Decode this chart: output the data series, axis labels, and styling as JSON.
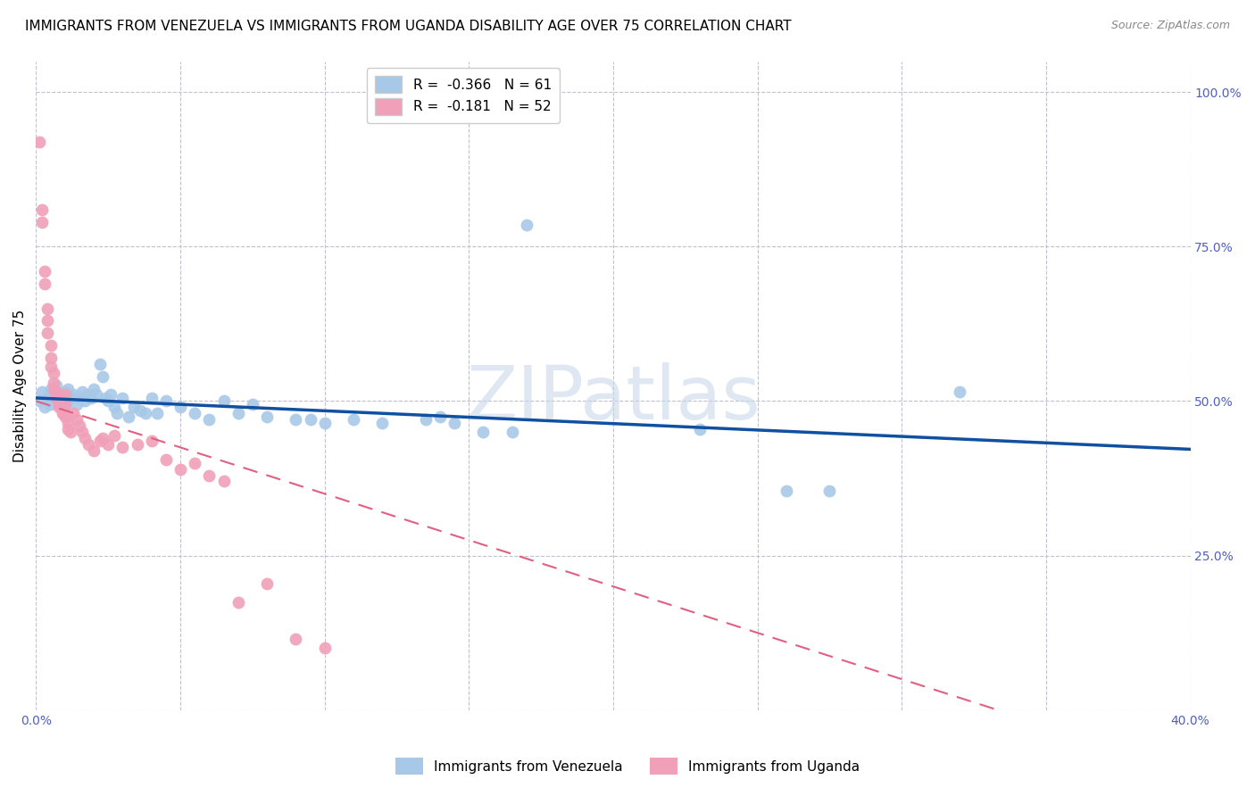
{
  "title": "IMMIGRANTS FROM VENEZUELA VS IMMIGRANTS FROM UGANDA DISABILITY AGE OVER 75 CORRELATION CHART",
  "source": "Source: ZipAtlas.com",
  "ylabel_label": "Disability Age Over 75",
  "xlim": [
    0.0,
    0.4
  ],
  "ylim": [
    0.0,
    1.05
  ],
  "legend_r1": "-0.366",
  "legend_n1": "61",
  "legend_r2": "-0.181",
  "legend_n2": "52",
  "color_venezuela": "#a8c8e8",
  "color_uganda": "#f0a0b8",
  "color_line_venezuela": "#1050a0",
  "color_line_uganda": "#e06080",
  "color_watermark": "#c8d8ea",
  "color_grid": "#c0c0d0",
  "venezuela_points": [
    [
      0.001,
      0.5
    ],
    [
      0.002,
      0.515
    ],
    [
      0.003,
      0.49
    ],
    [
      0.004,
      0.505
    ],
    [
      0.005,
      0.52
    ],
    [
      0.005,
      0.495
    ],
    [
      0.006,
      0.51
    ],
    [
      0.007,
      0.525
    ],
    [
      0.007,
      0.5
    ],
    [
      0.008,
      0.51
    ],
    [
      0.009,
      0.505
    ],
    [
      0.01,
      0.515
    ],
    [
      0.01,
      0.49
    ],
    [
      0.011,
      0.52
    ],
    [
      0.012,
      0.505
    ],
    [
      0.013,
      0.51
    ],
    [
      0.014,
      0.495
    ],
    [
      0.015,
      0.505
    ],
    [
      0.016,
      0.515
    ],
    [
      0.017,
      0.5
    ],
    [
      0.018,
      0.51
    ],
    [
      0.019,
      0.505
    ],
    [
      0.02,
      0.52
    ],
    [
      0.021,
      0.51
    ],
    [
      0.022,
      0.56
    ],
    [
      0.023,
      0.54
    ],
    [
      0.024,
      0.505
    ],
    [
      0.025,
      0.5
    ],
    [
      0.026,
      0.51
    ],
    [
      0.027,
      0.49
    ],
    [
      0.028,
      0.48
    ],
    [
      0.03,
      0.505
    ],
    [
      0.032,
      0.475
    ],
    [
      0.034,
      0.49
    ],
    [
      0.036,
      0.485
    ],
    [
      0.038,
      0.48
    ],
    [
      0.04,
      0.505
    ],
    [
      0.042,
      0.48
    ],
    [
      0.045,
      0.5
    ],
    [
      0.05,
      0.49
    ],
    [
      0.055,
      0.48
    ],
    [
      0.06,
      0.47
    ],
    [
      0.065,
      0.5
    ],
    [
      0.07,
      0.48
    ],
    [
      0.075,
      0.495
    ],
    [
      0.08,
      0.475
    ],
    [
      0.09,
      0.47
    ],
    [
      0.095,
      0.47
    ],
    [
      0.1,
      0.465
    ],
    [
      0.11,
      0.47
    ],
    [
      0.12,
      0.465
    ],
    [
      0.135,
      0.47
    ],
    [
      0.14,
      0.475
    ],
    [
      0.145,
      0.465
    ],
    [
      0.155,
      0.45
    ],
    [
      0.165,
      0.45
    ],
    [
      0.17,
      0.785
    ],
    [
      0.23,
      0.455
    ],
    [
      0.26,
      0.355
    ],
    [
      0.275,
      0.355
    ],
    [
      0.32,
      0.515
    ]
  ],
  "uganda_points": [
    [
      0.001,
      0.92
    ],
    [
      0.002,
      0.81
    ],
    [
      0.002,
      0.79
    ],
    [
      0.003,
      0.71
    ],
    [
      0.003,
      0.69
    ],
    [
      0.004,
      0.65
    ],
    [
      0.004,
      0.63
    ],
    [
      0.004,
      0.61
    ],
    [
      0.005,
      0.59
    ],
    [
      0.005,
      0.57
    ],
    [
      0.005,
      0.555
    ],
    [
      0.006,
      0.545
    ],
    [
      0.006,
      0.53
    ],
    [
      0.006,
      0.52
    ],
    [
      0.007,
      0.515
    ],
    [
      0.007,
      0.51
    ],
    [
      0.007,
      0.505
    ],
    [
      0.008,
      0.5
    ],
    [
      0.008,
      0.495
    ],
    [
      0.008,
      0.49
    ],
    [
      0.009,
      0.485
    ],
    [
      0.009,
      0.48
    ],
    [
      0.009,
      0.5
    ],
    [
      0.01,
      0.51
    ],
    [
      0.01,
      0.495
    ],
    [
      0.01,
      0.475
    ],
    [
      0.011,
      0.465
    ],
    [
      0.011,
      0.455
    ],
    [
      0.012,
      0.45
    ],
    [
      0.013,
      0.48
    ],
    [
      0.014,
      0.47
    ],
    [
      0.015,
      0.46
    ],
    [
      0.016,
      0.45
    ],
    [
      0.017,
      0.44
    ],
    [
      0.018,
      0.43
    ],
    [
      0.02,
      0.42
    ],
    [
      0.022,
      0.435
    ],
    [
      0.023,
      0.44
    ],
    [
      0.025,
      0.43
    ],
    [
      0.027,
      0.445
    ],
    [
      0.03,
      0.425
    ],
    [
      0.035,
      0.43
    ],
    [
      0.04,
      0.435
    ],
    [
      0.045,
      0.405
    ],
    [
      0.05,
      0.39
    ],
    [
      0.055,
      0.4
    ],
    [
      0.06,
      0.38
    ],
    [
      0.065,
      0.37
    ],
    [
      0.07,
      0.175
    ],
    [
      0.08,
      0.205
    ],
    [
      0.09,
      0.115
    ],
    [
      0.1,
      0.1
    ]
  ],
  "background_color": "#ffffff",
  "title_fontsize": 11,
  "axis_color": "#5060c0",
  "tick_color_right": "#5060c0",
  "tick_fontsize": 10
}
